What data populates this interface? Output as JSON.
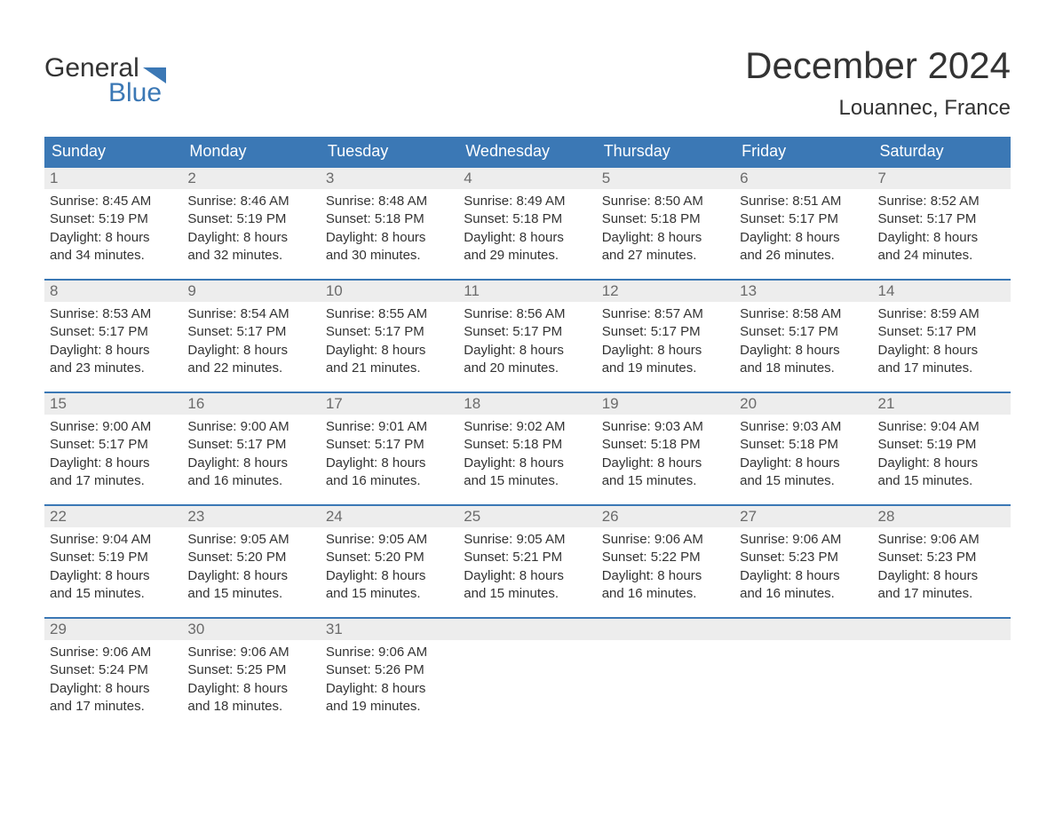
{
  "logo": {
    "word1": "General",
    "word2": "Blue",
    "flag_color": "#3b78b5",
    "word1_color": "#333333",
    "word2_color": "#3b78b5"
  },
  "header": {
    "title": "December 2024",
    "location": "Louannec, France"
  },
  "colors": {
    "header_bg": "#3b78b5",
    "header_text": "#ffffff",
    "week_border": "#3b78b5",
    "daynum_bg": "#ededed",
    "daynum_text": "#6b6b6b",
    "body_text": "#333333",
    "page_bg": "#ffffff"
  },
  "day_headers": [
    "Sunday",
    "Monday",
    "Tuesday",
    "Wednesday",
    "Thursday",
    "Friday",
    "Saturday"
  ],
  "weeks": [
    [
      {
        "num": "1",
        "sunrise": "Sunrise: 8:45 AM",
        "sunset": "Sunset: 5:19 PM",
        "day1": "Daylight: 8 hours",
        "day2": "and 34 minutes."
      },
      {
        "num": "2",
        "sunrise": "Sunrise: 8:46 AM",
        "sunset": "Sunset: 5:19 PM",
        "day1": "Daylight: 8 hours",
        "day2": "and 32 minutes."
      },
      {
        "num": "3",
        "sunrise": "Sunrise: 8:48 AM",
        "sunset": "Sunset: 5:18 PM",
        "day1": "Daylight: 8 hours",
        "day2": "and 30 minutes."
      },
      {
        "num": "4",
        "sunrise": "Sunrise: 8:49 AM",
        "sunset": "Sunset: 5:18 PM",
        "day1": "Daylight: 8 hours",
        "day2": "and 29 minutes."
      },
      {
        "num": "5",
        "sunrise": "Sunrise: 8:50 AM",
        "sunset": "Sunset: 5:18 PM",
        "day1": "Daylight: 8 hours",
        "day2": "and 27 minutes."
      },
      {
        "num": "6",
        "sunrise": "Sunrise: 8:51 AM",
        "sunset": "Sunset: 5:17 PM",
        "day1": "Daylight: 8 hours",
        "day2": "and 26 minutes."
      },
      {
        "num": "7",
        "sunrise": "Sunrise: 8:52 AM",
        "sunset": "Sunset: 5:17 PM",
        "day1": "Daylight: 8 hours",
        "day2": "and 24 minutes."
      }
    ],
    [
      {
        "num": "8",
        "sunrise": "Sunrise: 8:53 AM",
        "sunset": "Sunset: 5:17 PM",
        "day1": "Daylight: 8 hours",
        "day2": "and 23 minutes."
      },
      {
        "num": "9",
        "sunrise": "Sunrise: 8:54 AM",
        "sunset": "Sunset: 5:17 PM",
        "day1": "Daylight: 8 hours",
        "day2": "and 22 minutes."
      },
      {
        "num": "10",
        "sunrise": "Sunrise: 8:55 AM",
        "sunset": "Sunset: 5:17 PM",
        "day1": "Daylight: 8 hours",
        "day2": "and 21 minutes."
      },
      {
        "num": "11",
        "sunrise": "Sunrise: 8:56 AM",
        "sunset": "Sunset: 5:17 PM",
        "day1": "Daylight: 8 hours",
        "day2": "and 20 minutes."
      },
      {
        "num": "12",
        "sunrise": "Sunrise: 8:57 AM",
        "sunset": "Sunset: 5:17 PM",
        "day1": "Daylight: 8 hours",
        "day2": "and 19 minutes."
      },
      {
        "num": "13",
        "sunrise": "Sunrise: 8:58 AM",
        "sunset": "Sunset: 5:17 PM",
        "day1": "Daylight: 8 hours",
        "day2": "and 18 minutes."
      },
      {
        "num": "14",
        "sunrise": "Sunrise: 8:59 AM",
        "sunset": "Sunset: 5:17 PM",
        "day1": "Daylight: 8 hours",
        "day2": "and 17 minutes."
      }
    ],
    [
      {
        "num": "15",
        "sunrise": "Sunrise: 9:00 AM",
        "sunset": "Sunset: 5:17 PM",
        "day1": "Daylight: 8 hours",
        "day2": "and 17 minutes."
      },
      {
        "num": "16",
        "sunrise": "Sunrise: 9:00 AM",
        "sunset": "Sunset: 5:17 PM",
        "day1": "Daylight: 8 hours",
        "day2": "and 16 minutes."
      },
      {
        "num": "17",
        "sunrise": "Sunrise: 9:01 AM",
        "sunset": "Sunset: 5:17 PM",
        "day1": "Daylight: 8 hours",
        "day2": "and 16 minutes."
      },
      {
        "num": "18",
        "sunrise": "Sunrise: 9:02 AM",
        "sunset": "Sunset: 5:18 PM",
        "day1": "Daylight: 8 hours",
        "day2": "and 15 minutes."
      },
      {
        "num": "19",
        "sunrise": "Sunrise: 9:03 AM",
        "sunset": "Sunset: 5:18 PM",
        "day1": "Daylight: 8 hours",
        "day2": "and 15 minutes."
      },
      {
        "num": "20",
        "sunrise": "Sunrise: 9:03 AM",
        "sunset": "Sunset: 5:18 PM",
        "day1": "Daylight: 8 hours",
        "day2": "and 15 minutes."
      },
      {
        "num": "21",
        "sunrise": "Sunrise: 9:04 AM",
        "sunset": "Sunset: 5:19 PM",
        "day1": "Daylight: 8 hours",
        "day2": "and 15 minutes."
      }
    ],
    [
      {
        "num": "22",
        "sunrise": "Sunrise: 9:04 AM",
        "sunset": "Sunset: 5:19 PM",
        "day1": "Daylight: 8 hours",
        "day2": "and 15 minutes."
      },
      {
        "num": "23",
        "sunrise": "Sunrise: 9:05 AM",
        "sunset": "Sunset: 5:20 PM",
        "day1": "Daylight: 8 hours",
        "day2": "and 15 minutes."
      },
      {
        "num": "24",
        "sunrise": "Sunrise: 9:05 AM",
        "sunset": "Sunset: 5:20 PM",
        "day1": "Daylight: 8 hours",
        "day2": "and 15 minutes."
      },
      {
        "num": "25",
        "sunrise": "Sunrise: 9:05 AM",
        "sunset": "Sunset: 5:21 PM",
        "day1": "Daylight: 8 hours",
        "day2": "and 15 minutes."
      },
      {
        "num": "26",
        "sunrise": "Sunrise: 9:06 AM",
        "sunset": "Sunset: 5:22 PM",
        "day1": "Daylight: 8 hours",
        "day2": "and 16 minutes."
      },
      {
        "num": "27",
        "sunrise": "Sunrise: 9:06 AM",
        "sunset": "Sunset: 5:23 PM",
        "day1": "Daylight: 8 hours",
        "day2": "and 16 minutes."
      },
      {
        "num": "28",
        "sunrise": "Sunrise: 9:06 AM",
        "sunset": "Sunset: 5:23 PM",
        "day1": "Daylight: 8 hours",
        "day2": "and 17 minutes."
      }
    ],
    [
      {
        "num": "29",
        "sunrise": "Sunrise: 9:06 AM",
        "sunset": "Sunset: 5:24 PM",
        "day1": "Daylight: 8 hours",
        "day2": "and 17 minutes."
      },
      {
        "num": "30",
        "sunrise": "Sunrise: 9:06 AM",
        "sunset": "Sunset: 5:25 PM",
        "day1": "Daylight: 8 hours",
        "day2": "and 18 minutes."
      },
      {
        "num": "31",
        "sunrise": "Sunrise: 9:06 AM",
        "sunset": "Sunset: 5:26 PM",
        "day1": "Daylight: 8 hours",
        "day2": "and 19 minutes."
      },
      {
        "empty": true
      },
      {
        "empty": true
      },
      {
        "empty": true
      },
      {
        "empty": true
      }
    ]
  ]
}
